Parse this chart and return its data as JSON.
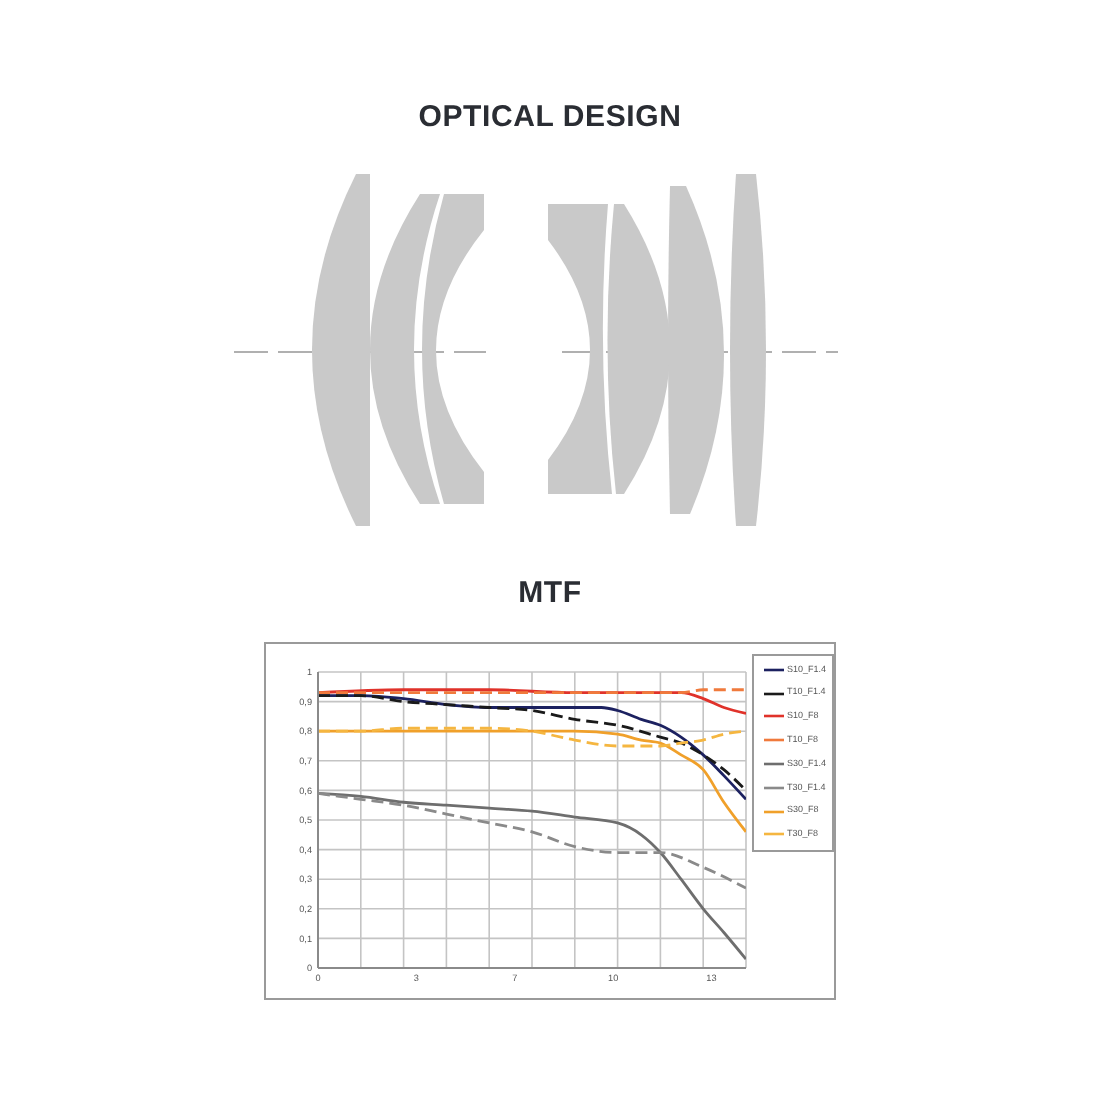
{
  "chart_data": [
    {
      "type": "other",
      "title": "OPTICAL DESIGN"
    },
    {
      "type": "line",
      "title": "MTF",
      "xlim": [
        0,
        14.5
      ],
      "xticks": [
        {
          "value": 0,
          "label": "0"
        },
        {
          "value": 1.45,
          "label": null
        },
        {
          "value": 2.9,
          "label": null
        },
        {
          "value": 3.33,
          "label": "3"
        },
        {
          "value": 4.35,
          "label": null
        },
        {
          "value": 5.8,
          "label": null
        },
        {
          "value": 6.67,
          "label": "7"
        },
        {
          "value": 7.25,
          "label": null
        },
        {
          "value": 8.7,
          "label": null
        },
        {
          "value": 10,
          "label": "10"
        },
        {
          "value": 10.15,
          "label": null
        },
        {
          "value": 11.6,
          "label": null
        },
        {
          "value": 13.05,
          "label": null
        },
        {
          "value": 13.33,
          "label": "13"
        },
        {
          "value": 14.5,
          "label": null
        }
      ],
      "ylim": [
        0,
        1
      ],
      "yticks": [
        0,
        {
          "value": 0.1,
          "label": "0,1"
        },
        {
          "value": 0.2,
          "label": "0,2"
        },
        {
          "value": 0.3,
          "label": "0,3"
        },
        {
          "value": 0.4,
          "label": "0,4"
        },
        {
          "value": 0.5,
          "label": "0,5"
        },
        {
          "value": 0.6,
          "label": "0,6"
        },
        {
          "value": 0.7,
          "label": "0,7"
        },
        {
          "value": 0.8,
          "label": "0,8"
        },
        {
          "value": 0.9,
          "label": "0,9"
        },
        1
      ],
      "grid": true,
      "legend": "top right",
      "series": [
        {
          "name": "S10_F1.4",
          "color": "#1c2160",
          "line_style": "solid",
          "x": [
            0,
            1.45,
            2.9,
            4.35,
            5.8,
            7.25,
            8.7,
            9.6,
            10.15,
            10.95,
            11.6,
            12.3,
            13.05,
            13.75,
            14.5
          ],
          "values": [
            0.92,
            0.92,
            0.91,
            0.89,
            0.88,
            0.88,
            0.88,
            0.88,
            0.87,
            0.84,
            0.82,
            0.78,
            0.72,
            0.65,
            0.57
          ]
        },
        {
          "name": "T10_F1.4",
          "color": "#1a1a1a",
          "line_style": "dashed",
          "x": [
            0,
            1.45,
            2.9,
            4.35,
            5.8,
            7.25,
            8.7,
            10.15,
            11.6,
            12.3,
            13.05,
            13.75,
            14.5
          ],
          "values": [
            0.92,
            0.92,
            0.9,
            0.89,
            0.88,
            0.87,
            0.84,
            0.82,
            0.78,
            0.76,
            0.72,
            0.67,
            0.6
          ]
        },
        {
          "name": "S10_F8",
          "color": "#e0322a",
          "line_style": "solid",
          "x": [
            0,
            2.9,
            5.8,
            8.7,
            11.6,
            12.3,
            13.05,
            13.75,
            14.5
          ],
          "values": [
            0.93,
            0.94,
            0.94,
            0.93,
            0.93,
            0.93,
            0.91,
            0.88,
            0.86
          ]
        },
        {
          "name": "T10_F8",
          "color": "#f07a3c",
          "line_style": "dashed",
          "x": [
            0,
            2.9,
            5.8,
            8.7,
            11.6,
            12.3,
            13.05,
            14.5
          ],
          "values": [
            0.93,
            0.93,
            0.93,
            0.93,
            0.93,
            0.93,
            0.94,
            0.94
          ]
        },
        {
          "name": "S30_F1.4",
          "color": "#6e6e6e",
          "line_style": "solid",
          "x": [
            0,
            1.45,
            2.9,
            4.35,
            5.8,
            7.25,
            8.7,
            10.15,
            10.95,
            11.6,
            12.3,
            13.05,
            13.75,
            14.5
          ],
          "values": [
            0.59,
            0.58,
            0.56,
            0.55,
            0.54,
            0.53,
            0.51,
            0.49,
            0.45,
            0.39,
            0.3,
            0.2,
            0.12,
            0.03
          ]
        },
        {
          "name": "T30_F1.4",
          "color": "#8a8a8a",
          "line_style": "dashed",
          "x": [
            0,
            1.45,
            2.9,
            4.35,
            5.8,
            7.25,
            8.7,
            10.15,
            10.95,
            11.6,
            13.05,
            14.5
          ],
          "values": [
            0.59,
            0.57,
            0.55,
            0.52,
            0.49,
            0.46,
            0.41,
            0.39,
            0.39,
            0.39,
            0.34,
            0.27
          ]
        },
        {
          "name": "S30_F8",
          "color": "#f0a02a",
          "line_style": "solid",
          "x": [
            0,
            1.45,
            2.9,
            4.35,
            5.8,
            7.25,
            8.7,
            10.15,
            10.95,
            11.6,
            12.3,
            13.05,
            13.75,
            14.5
          ],
          "values": [
            0.8,
            0.8,
            0.8,
            0.8,
            0.8,
            0.8,
            0.8,
            0.79,
            0.77,
            0.76,
            0.72,
            0.67,
            0.56,
            0.46
          ]
        },
        {
          "name": "T30_F8",
          "color": "#f5b640",
          "line_style": "dashed",
          "x": [
            0,
            1.45,
            2.9,
            4.35,
            5.8,
            7.25,
            8.7,
            10.15,
            11.6,
            12.3,
            13.05,
            13.75,
            14.5
          ],
          "values": [
            0.8,
            0.8,
            0.81,
            0.81,
            0.81,
            0.8,
            0.77,
            0.75,
            0.75,
            0.76,
            0.77,
            0.79,
            0.8
          ]
        }
      ]
    }
  ]
}
